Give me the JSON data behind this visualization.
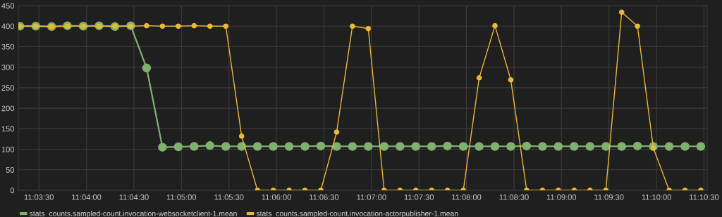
{
  "chart_data": {
    "type": "line",
    "x": [
      11.055,
      11.05778,
      11.06056,
      11.06333,
      11.06611,
      11.06889,
      11.07167,
      11.07444,
      11.07722,
      11.08,
      11.08278,
      11.08556,
      11.08833,
      11.09111,
      11.09389,
      11.09667,
      11.09944,
      11.10222,
      11.105,
      11.10778,
      11.11056,
      11.11333,
      11.11611,
      11.11889,
      11.12167,
      11.12444,
      11.12722,
      11.13,
      11.13278,
      11.13556,
      11.13833,
      11.14111,
      11.14389,
      11.14667,
      11.14944,
      11.15222,
      11.155,
      11.15778,
      11.16056,
      11.16333,
      11.16611,
      11.16889,
      11.17167,
      11.17444
    ],
    "series": [
      {
        "name": "stats_counts.sampled-count.invocation-websocketclient-1.mean",
        "color": "#7eb26d",
        "values": [
          400,
          400,
          399,
          401,
          400,
          401,
          399,
          401,
          298,
          105,
          106,
          107,
          109,
          107,
          107,
          107,
          107,
          107,
          107,
          108,
          107,
          107,
          107,
          107,
          107,
          107,
          107,
          108,
          107,
          107,
          107,
          107,
          108,
          107,
          107,
          107,
          107,
          107,
          107,
          108,
          107,
          107,
          107,
          107
        ]
      },
      {
        "name": "stats_counts.sampled-count.invocation-actorpublisher-1.mean",
        "color": "#eab839",
        "values": [
          400,
          400,
          399,
          400,
          400,
          400,
          400,
          400,
          401,
          400,
          400,
          401,
          400,
          400,
          132,
          0,
          0,
          0,
          0,
          0,
          142,
          400,
          394,
          0,
          0,
          0,
          0,
          0,
          0,
          274,
          401,
          269,
          0,
          0,
          0,
          0,
          0,
          0,
          434,
          400,
          103,
          0,
          0,
          0
        ]
      }
    ],
    "xlim": [
      11.05472,
      11.17556
    ],
    "xticks": [
      {
        "value": 11.05833,
        "label": "11:03:30"
      },
      {
        "value": 11.06667,
        "label": "11:04:00"
      },
      {
        "value": 11.075,
        "label": "11:04:30"
      },
      {
        "value": 11.08333,
        "label": "11:05:00"
      },
      {
        "value": 11.09167,
        "label": "11:05:30"
      },
      {
        "value": 11.1,
        "label": "11:06:00"
      },
      {
        "value": 11.10833,
        "label": "11:06:30"
      },
      {
        "value": 11.11667,
        "label": "11:07:00"
      },
      {
        "value": 11.125,
        "label": "11:07:30"
      },
      {
        "value": 11.13333,
        "label": "11:08:00"
      },
      {
        "value": 11.14167,
        "label": "11:08:30"
      },
      {
        "value": 11.15,
        "label": "11:09:00"
      },
      {
        "value": 11.15833,
        "label": "11:09:30"
      },
      {
        "value": 11.16667,
        "label": "11:10:00"
      },
      {
        "value": 11.175,
        "label": "11:10:30"
      }
    ],
    "ylim": [
      0,
      450
    ],
    "yticks": [
      0,
      50,
      100,
      150,
      200,
      250,
      300,
      350,
      400,
      450
    ],
    "grid": true,
    "legend": "bottom left",
    "marker": "circle",
    "line_style": "solid"
  }
}
